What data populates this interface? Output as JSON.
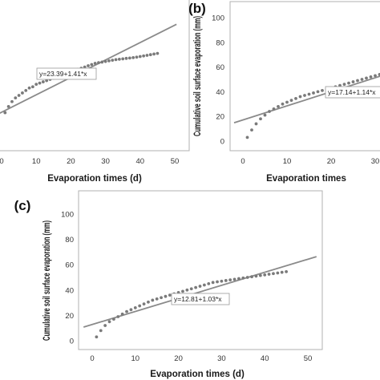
{
  "chart_data": [
    {
      "type": "scatter",
      "panel_label": "",
      "xlabel": "Evaporation times (d)",
      "ylabel": "",
      "xlim": [
        -2,
        52
      ],
      "ylim": [
        -8,
        100
      ],
      "x_ticks": [
        "0",
        "10",
        "20",
        "30",
        "40",
        "50"
      ],
      "y_ticks": [],
      "series": [
        {
          "x": [
            1,
            2,
            3,
            4,
            5,
            6,
            7,
            8,
            9,
            10,
            11,
            12,
            13,
            14,
            15,
            16,
            17,
            18,
            19,
            20,
            21,
            22,
            23,
            24,
            25,
            26,
            27,
            28,
            29,
            30,
            31,
            32,
            33,
            34,
            35,
            36,
            37,
            38,
            39,
            40,
            41,
            42,
            43,
            44,
            45
          ],
          "y": [
            23,
            28,
            32,
            35,
            37,
            39,
            41,
            43,
            44,
            46,
            47,
            48,
            49,
            50,
            51,
            52,
            53,
            54,
            55,
            56,
            57,
            58,
            59,
            60,
            61,
            62,
            63,
            63.5,
            64,
            64.5,
            65,
            65.5,
            66,
            66.3,
            66.6,
            67,
            67.3,
            67.6,
            68,
            68.5,
            69,
            69.5,
            70,
            70.5,
            71
          ]
        }
      ],
      "fit_line": {
        "intercept": 23.39,
        "slope": 1.41,
        "x_range": [
          -2,
          50.5
        ]
      },
      "equation": "y=23.39+1.41*x"
    },
    {
      "type": "scatter",
      "panel_label": "(b)",
      "xlabel": "Evaporation times",
      "ylabel": "Cumulative soil surface evaporation (mm)",
      "xlim": [
        -2,
        32
      ],
      "ylim": [
        -8,
        102
      ],
      "x_ticks": [
        "0",
        "10",
        "20",
        "30"
      ],
      "y_ticks": [
        "0",
        "20",
        "40",
        "60",
        "80",
        "100"
      ],
      "series": [
        {
          "x": [
            1,
            2,
            3,
            4,
            5,
            6,
            7,
            8,
            9,
            10,
            11,
            12,
            13,
            14,
            15,
            16,
            17,
            18,
            19,
            20,
            21,
            22,
            23,
            24,
            25,
            26,
            27,
            28,
            29,
            30,
            31
          ],
          "y": [
            3,
            9,
            14,
            18,
            21,
            24,
            26,
            28,
            30,
            31.5,
            33,
            34.5,
            36,
            37,
            38,
            39,
            40,
            41,
            42,
            43,
            44,
            45,
            46,
            47,
            48,
            49,
            50,
            51,
            52,
            53,
            54
          ]
        }
      ],
      "fit_line": {
        "intercept": 17.14,
        "slope": 1.14,
        "x_range": [
          -2,
          32
        ]
      },
      "equation": "y=17.14+1.14*x"
    },
    {
      "type": "scatter",
      "panel_label": "(c)",
      "xlabel": "Evaporation times (d)",
      "ylabel": "Cumulative soil surface evaporation (mm)",
      "xlim": [
        -2,
        52
      ],
      "ylim": [
        -8,
        102
      ],
      "x_ticks": [
        "0",
        "10",
        "20",
        "30",
        "40",
        "50"
      ],
      "y_ticks": [
        "0",
        "20",
        "40",
        "60",
        "80",
        "100"
      ],
      "series": [
        {
          "x": [
            1,
            2,
            3,
            4,
            5,
            6,
            7,
            8,
            9,
            10,
            11,
            12,
            13,
            14,
            15,
            16,
            17,
            18,
            19,
            20,
            21,
            22,
            23,
            24,
            25,
            26,
            27,
            28,
            29,
            30,
            31,
            32,
            33,
            34,
            35,
            36,
            37,
            38,
            39,
            40,
            41,
            42,
            43,
            44,
            45
          ],
          "y": [
            3,
            8,
            12,
            15,
            17,
            19,
            21,
            23,
            24.5,
            26,
            27.5,
            29,
            30.5,
            32,
            33,
            34,
            35,
            36,
            37,
            38,
            39,
            40,
            41,
            42,
            43,
            44,
            45,
            46,
            46.5,
            47,
            47.5,
            48,
            48.5,
            49,
            49.5,
            50,
            50.5,
            51,
            51.5,
            52,
            52.5,
            53,
            53.5,
            54,
            54.5
          ]
        }
      ],
      "fit_line": {
        "intercept": 12.81,
        "slope": 1.03,
        "x_range": [
          -2,
          52
        ]
      },
      "equation": "y=12.81+1.03*x"
    }
  ],
  "colors": {
    "points": "#7a7a7a",
    "line": "#8a8a8a",
    "frame": "#b0b0b0",
    "grid": "#d8d8d8"
  }
}
